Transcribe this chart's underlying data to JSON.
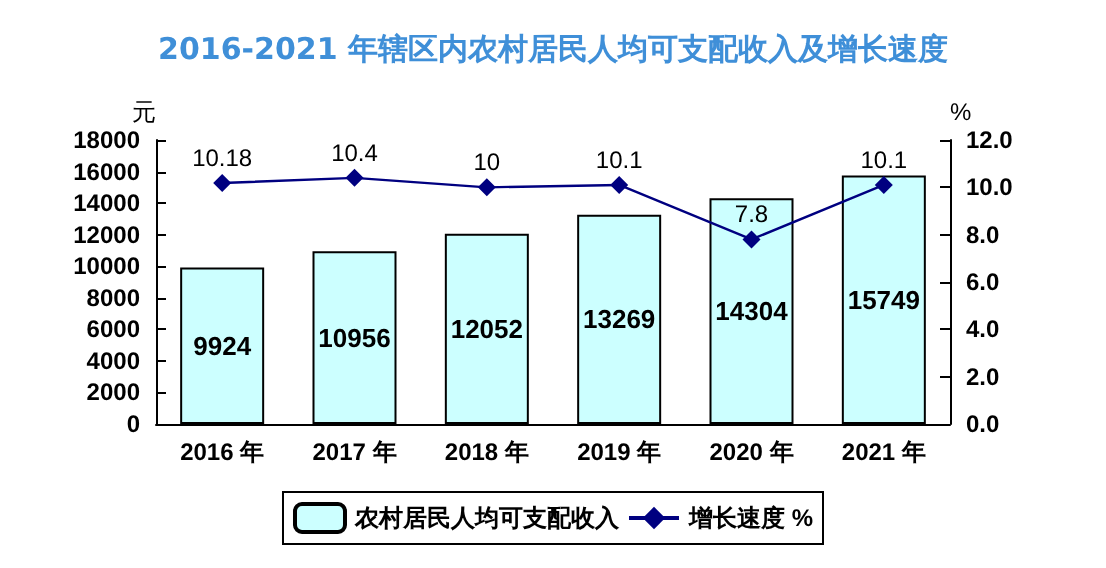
{
  "chart_data": {
    "type": "bar",
    "title": "2016-2021 年辖区内农村居民人均可支配收入及增长速度",
    "categories": [
      "2016 年",
      "2017 年",
      "2018 年",
      "2019 年",
      "2020 年",
      "2021 年"
    ],
    "series": [
      {
        "name": "农村居民人均可支配收入",
        "color": "#ccffff",
        "values": [
          9924,
          10956,
          12052,
          13269,
          14304,
          15749
        ]
      },
      {
        "name": "增长速度 %",
        "type": "line",
        "axis": "y2",
        "color": "#000080",
        "marker": "diamond",
        "values": [
          10.18,
          10.4,
          10,
          10.1,
          7.8,
          10.1
        ]
      }
    ],
    "ylabel": "元",
    "y2label": "%",
    "ylim": [
      0,
      18000
    ],
    "yticks": [
      0,
      2000,
      4000,
      6000,
      8000,
      10000,
      12000,
      14000,
      16000,
      18000
    ],
    "y2lim": [
      0,
      12
    ],
    "y2ticks": [
      {
        "value": 0,
        "label": "0.0"
      },
      {
        "value": 2,
        "label": "2.0"
      },
      {
        "value": 4,
        "label": "4.0"
      },
      {
        "value": 6,
        "label": "6.0"
      },
      {
        "value": 8,
        "label": "8.0"
      },
      {
        "value": 10,
        "label": "10.0"
      },
      {
        "value": 12,
        "label": "12.0"
      }
    ],
    "data_labels": true,
    "grid": false,
    "legend": "bottom"
  }
}
